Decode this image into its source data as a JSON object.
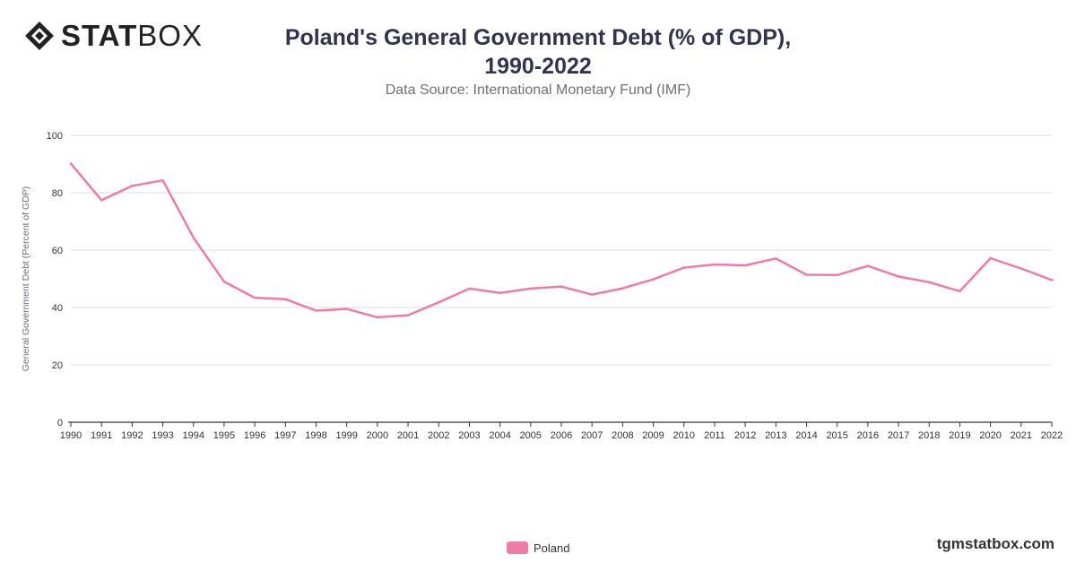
{
  "brand": {
    "logo_bold": "STAT",
    "logo_light": "BOX",
    "logo_icon": "diamond-logo-icon",
    "url": "tgmstatbox.com"
  },
  "colors": {
    "series": "#f07ba4",
    "grid": "#dddddd",
    "axis": "#333333",
    "tick_text": "#333333",
    "ylabel_text": "#6b6b8a"
  },
  "chart_data": {
    "type": "line",
    "title": "Poland's General Government Debt (% of GDP), 1990-2022",
    "subtitle": "Data Source: International Monetary Fund (IMF)",
    "xlabel": "",
    "ylabel": "General Government Debt (Percent of GDP)",
    "ylim": [
      0,
      100
    ],
    "yticks": [
      0,
      20,
      40,
      60,
      80,
      100
    ],
    "grid": true,
    "legend_position": "bottom",
    "categories": [
      "1990",
      "1991",
      "1992",
      "1993",
      "1994",
      "1995",
      "1996",
      "1997",
      "1998",
      "1999",
      "2000",
      "2001",
      "2002",
      "2003",
      "2004",
      "2005",
      "2006",
      "2007",
      "2008",
      "2009",
      "2010",
      "2011",
      "2012",
      "2013",
      "2014",
      "2015",
      "2016",
      "2017",
      "2018",
      "2019",
      "2020",
      "2021",
      "2022"
    ],
    "series": [
      {
        "name": "Poland",
        "values": [
          90.2,
          77.4,
          82.4,
          84.3,
          64.3,
          49.0,
          43.4,
          42.9,
          38.9,
          39.5,
          36.6,
          37.3,
          41.8,
          46.6,
          45.1,
          46.6,
          47.3,
          44.5,
          46.7,
          49.8,
          53.9,
          55.0,
          54.7,
          57.1,
          51.4,
          51.3,
          54.5,
          50.8,
          48.8,
          45.7,
          57.2,
          53.6,
          49.6
        ]
      }
    ]
  }
}
